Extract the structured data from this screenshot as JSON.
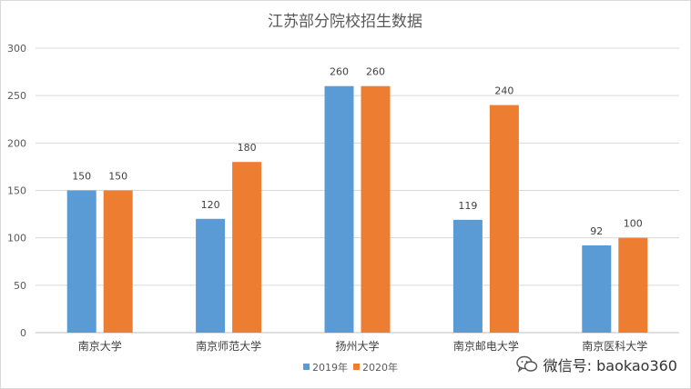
{
  "chart_data": {
    "type": "bar",
    "title": "江苏部分院校招生数据",
    "categories": [
      "南京大学",
      "南京师范大学",
      "扬州大学",
      "南京邮电大学",
      "南京医科大学"
    ],
    "series": [
      {
        "name": "2019年",
        "values": [
          150,
          120,
          260,
          119,
          92
        ],
        "color": "#5b9bd5"
      },
      {
        "name": "2020年",
        "values": [
          150,
          180,
          260,
          240,
          100
        ],
        "color": "#ed7d31"
      }
    ],
    "ylim": [
      0,
      300
    ],
    "yticks": [
      0,
      50,
      100,
      150,
      200,
      250,
      300
    ],
    "grid": true,
    "legend": "bottom"
  },
  "watermark": {
    "text": "微信号: baokao360",
    "icon": "wechat-icon"
  }
}
